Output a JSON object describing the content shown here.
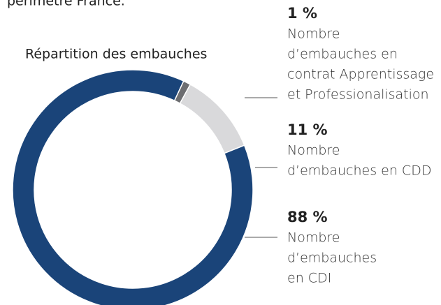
{
  "chart_data": {
    "type": "donut",
    "note": "périmètre France.",
    "title": "Répartition des embauches",
    "categories": [
      "Apprentissage et Professionalisation",
      "CDD",
      "CDI"
    ],
    "values": [
      1,
      11,
      88
    ],
    "value_labels": [
      "1 %",
      "11 %",
      "88 %"
    ],
    "descriptions": [
      [
        "Nombre",
        "d’embauches en",
        "contrat Apprentissage",
        "et Professionalisation"
      ],
      [
        "Nombre",
        "d’embauches en CDD"
      ],
      [
        "Nombre",
        "d’embauches",
        "en CDI"
      ]
    ],
    "colors": [
      "#6d6e71",
      "#d9d9db",
      "#1a4479"
    ]
  }
}
